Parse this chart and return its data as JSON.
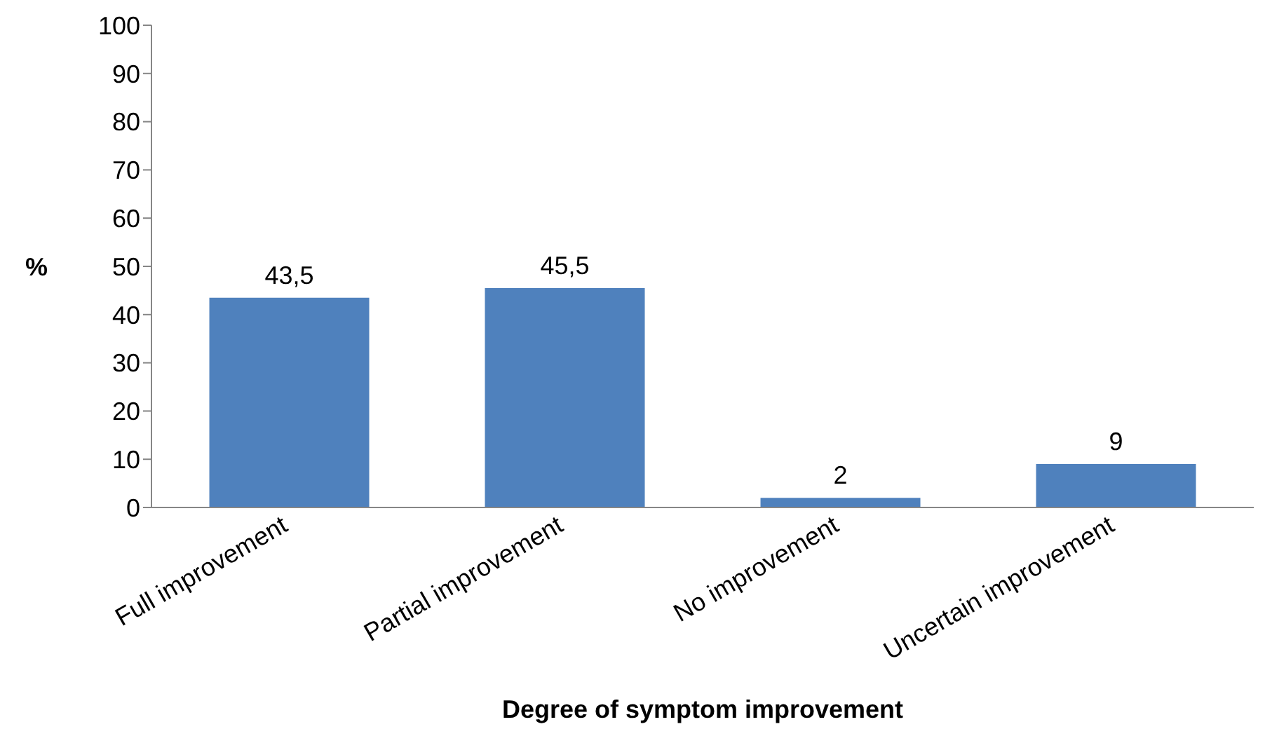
{
  "chart_data": {
    "type": "bar",
    "xlabel": "Degree of symptom improvement",
    "ylabel": "%",
    "categories": [
      "Full improvement",
      "Partial improvement",
      "No improvement",
      "Uncertain improvement"
    ],
    "values": [
      43.5,
      45.5,
      2,
      9
    ],
    "color": "#4f81bd",
    "value_labels": [
      "43,5",
      "45,5",
      "2",
      "9"
    ],
    "ylim": [
      0,
      100
    ],
    "yticks": [
      0,
      10,
      20,
      30,
      40,
      50,
      60,
      70,
      80,
      90,
      100
    ],
    "grid": false,
    "legend": false
  }
}
